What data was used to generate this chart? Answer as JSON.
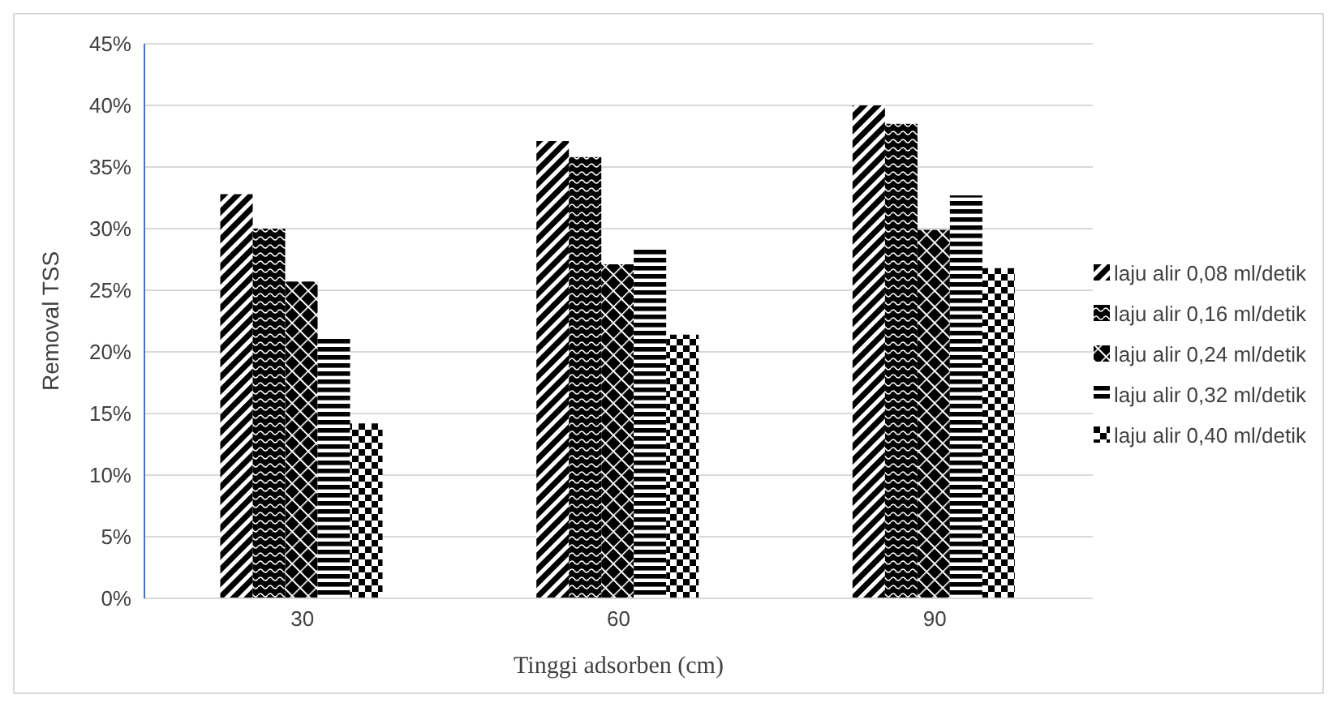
{
  "chart_data": {
    "type": "bar",
    "xlabel": "Tinggi adsorben (cm)",
    "ylabel": "Removal TSS",
    "categories": [
      "30",
      "60",
      "90"
    ],
    "series": [
      {
        "name": "laju alir 0,08 ml/detik",
        "color": "#000000",
        "values": [
          32.8,
          37.1,
          40
        ]
      },
      {
        "name": "laju alir 0,16 ml/detik",
        "color": "#000000",
        "values": [
          30,
          35.8,
          38.5
        ]
      },
      {
        "name": "laju alir 0,24 ml/detik",
        "color": "#000000",
        "values": [
          25.7,
          27.1,
          29.9
        ]
      },
      {
        "name": "laju alir 0,32 ml/detik",
        "color": "#000000",
        "values": [
          21.1,
          28.5,
          32.7
        ]
      },
      {
        "name": "laju alir 0,40 ml/detik",
        "color": "#000000",
        "values": [
          14.2,
          21.4,
          26.8
        ]
      }
    ],
    "ylim": [
      0,
      45
    ],
    "yticks": [
      {
        "value": 0,
        "label": "0%"
      },
      {
        "value": 5,
        "label": "5%"
      },
      {
        "value": 10,
        "label": "10%"
      },
      {
        "value": 15,
        "label": "15%"
      },
      {
        "value": 20,
        "label": "20%"
      },
      {
        "value": 25,
        "label": "25%"
      },
      {
        "value": 30,
        "label": "30%"
      },
      {
        "value": 35,
        "label": "35%"
      },
      {
        "value": 40,
        "label": "40%"
      },
      {
        "value": 45,
        "label": "45%"
      }
    ],
    "grid": "y",
    "legend": "right"
  }
}
